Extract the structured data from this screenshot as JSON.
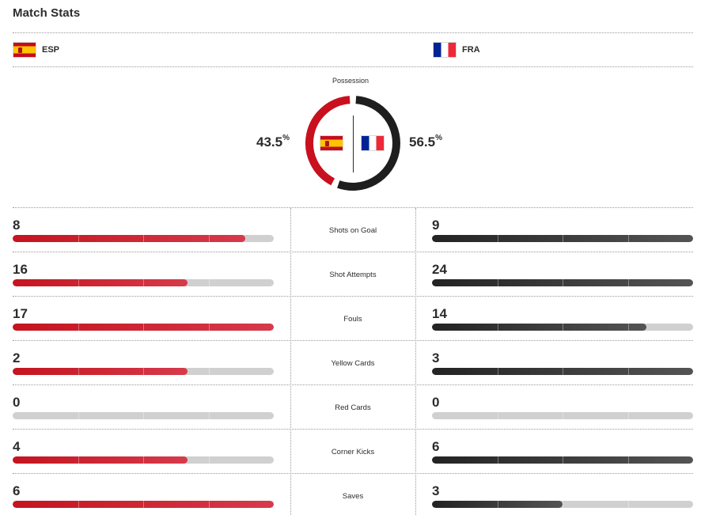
{
  "title": "Match Stats",
  "teams": {
    "home": {
      "abbr": "ESP",
      "flag": "spain-flag",
      "color": "#c4141f"
    },
    "away": {
      "abbr": "FRA",
      "flag": "france-flag",
      "color": "#232323"
    }
  },
  "possession": {
    "label": "Possession",
    "home_value": "43.5",
    "away_value": "56.5",
    "unit": "%",
    "home_fraction": 0.435,
    "away_fraction": 0.565
  },
  "stats": [
    {
      "label": "Shots on Goal",
      "home": "8",
      "away": "9",
      "home_fill": 0.89,
      "away_fill": 1.0
    },
    {
      "label": "Shot Attempts",
      "home": "16",
      "away": "24",
      "home_fill": 0.67,
      "away_fill": 1.0
    },
    {
      "label": "Fouls",
      "home": "17",
      "away": "14",
      "home_fill": 1.0,
      "away_fill": 0.82
    },
    {
      "label": "Yellow Cards",
      "home": "2",
      "away": "3",
      "home_fill": 0.67,
      "away_fill": 1.0
    },
    {
      "label": "Red Cards",
      "home": "0",
      "away": "0",
      "home_fill": 0.0,
      "away_fill": 0.0
    },
    {
      "label": "Corner Kicks",
      "home": "4",
      "away": "6",
      "home_fill": 0.67,
      "away_fill": 1.0
    },
    {
      "label": "Saves",
      "home": "6",
      "away": "3",
      "home_fill": 1.0,
      "away_fill": 0.5
    }
  ]
}
